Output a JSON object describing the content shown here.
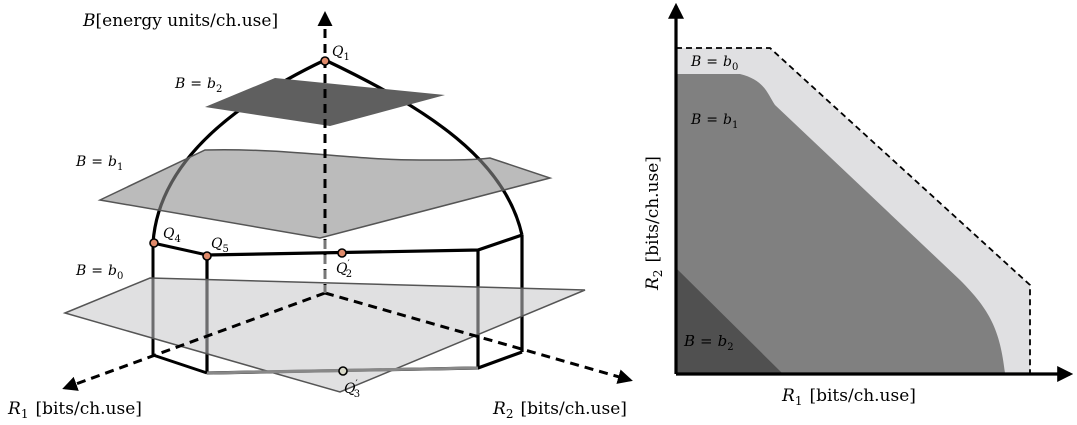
{
  "left_diagram": {
    "axis_z_label": {
      "var": "B",
      "rest": "[energy units/ch.use]"
    },
    "axis_r1_label": {
      "var": "R",
      "sub": "1",
      "rest": "[bits/ch.use]"
    },
    "axis_r2_label": {
      "var": "R",
      "sub": "2",
      "rest": "[bits/ch.use]"
    },
    "planes": [
      {
        "lhs": "B",
        "eq": "=",
        "rhs": "b",
        "sub": "2"
      },
      {
        "lhs": "B",
        "eq": "=",
        "rhs": "b",
        "sub": "1"
      },
      {
        "lhs": "B",
        "eq": "=",
        "rhs": "b",
        "sub": "0"
      }
    ],
    "points": [
      {
        "name": "Q",
        "sub": "1",
        "prime": ""
      },
      {
        "name": "Q",
        "sub": "4",
        "prime": ""
      },
      {
        "name": "Q",
        "sub": "5",
        "prime": ""
      },
      {
        "name": "Q",
        "sub": "2",
        "prime": "′"
      },
      {
        "name": "Q",
        "sub": "3",
        "prime": "′"
      }
    ]
  },
  "right_diagram": {
    "x_axis_label": {
      "var": "R",
      "sub": "1",
      "rest": "[bits/ch.use]"
    },
    "y_axis_label": {
      "var": "R",
      "sub": "2",
      "rest": "[bits/ch.use]"
    },
    "regions": [
      {
        "lhs": "B",
        "eq": "=",
        "rhs": "b",
        "sub": "0",
        "color": "#e0e0e2"
      },
      {
        "lhs": "B",
        "eq": "=",
        "rhs": "b",
        "sub": "1",
        "color": "#808080"
      },
      {
        "lhs": "B",
        "eq": "=",
        "rhs": "b",
        "sub": "2",
        "color": "#505050"
      }
    ]
  }
}
